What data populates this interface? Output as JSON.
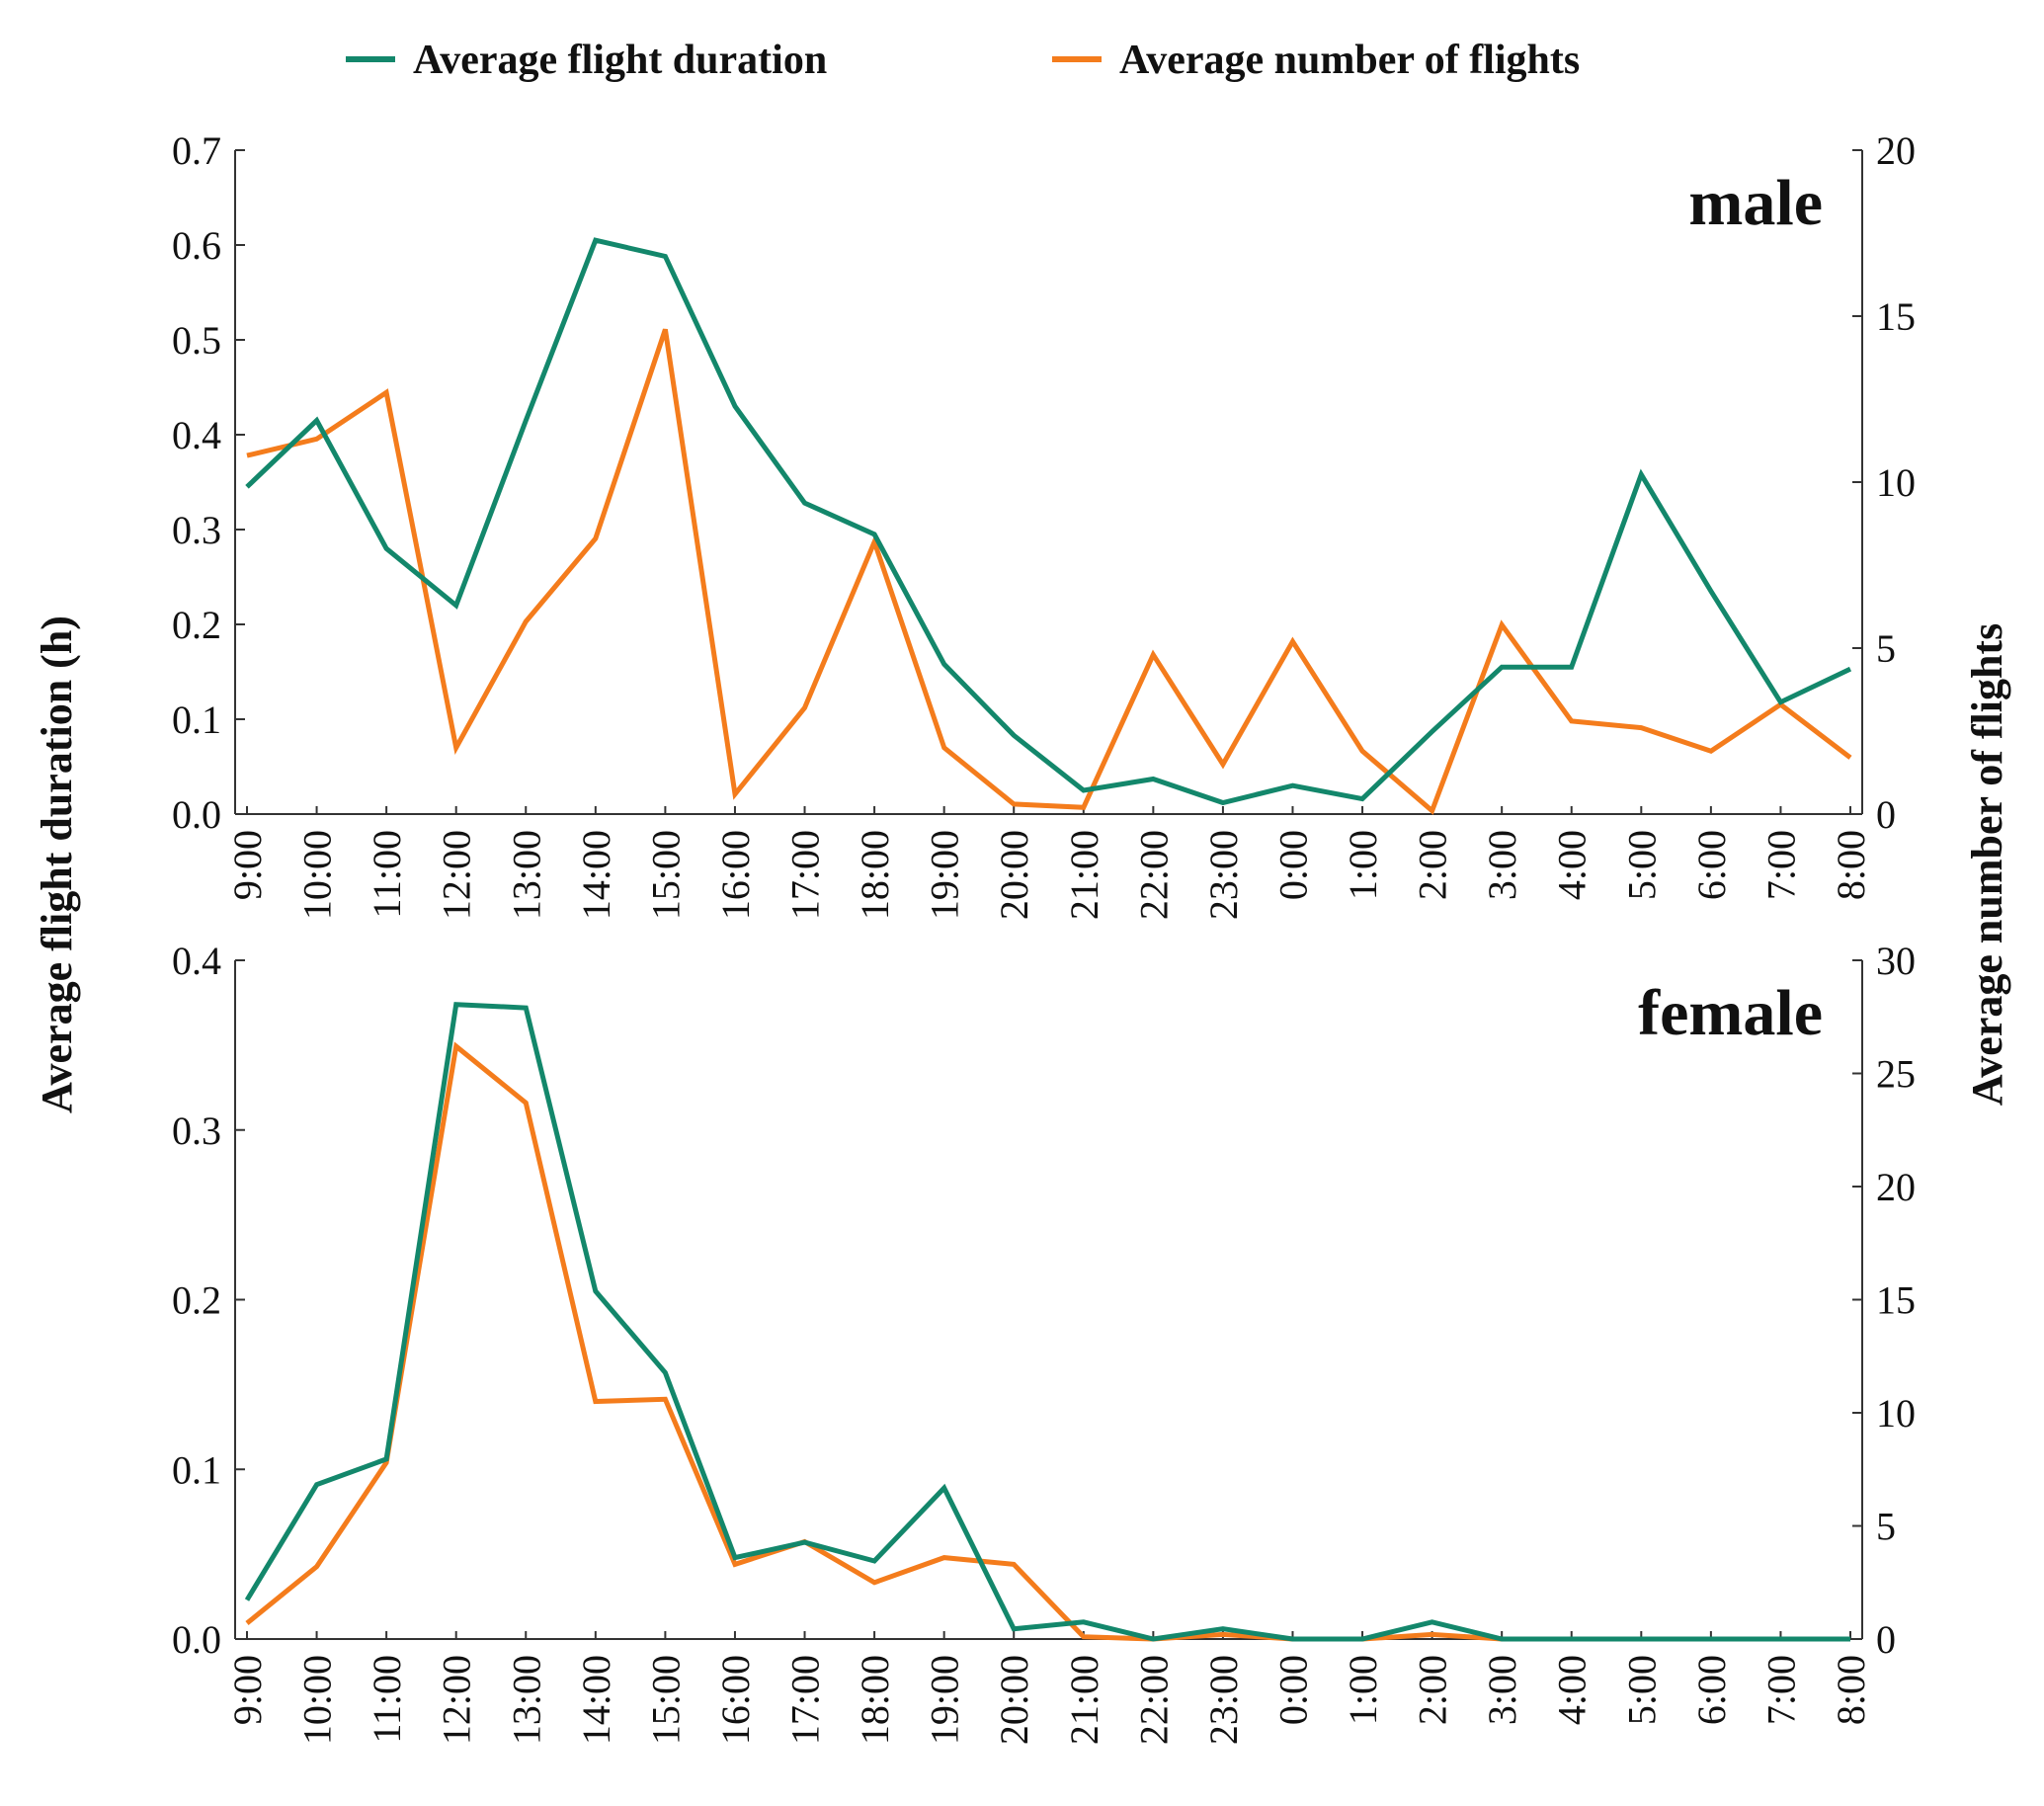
{
  "legend": {
    "duration_label": "Average flight duration",
    "number_label": "Average number of flights"
  },
  "axes": {
    "left_title": "Average flight duration (h)",
    "right_title": "Average number of flights"
  },
  "colors": {
    "duration": "#13876b",
    "number": "#f47c1c",
    "axis": "#333333"
  },
  "chart_data": [
    {
      "type": "line",
      "panel_label": "male",
      "categories": [
        "9:00",
        "10:00",
        "11:00",
        "12:00",
        "13:00",
        "14:00",
        "15:00",
        "16:00",
        "17:00",
        "18:00",
        "19:00",
        "20:00",
        "21:00",
        "22:00",
        "23:00",
        "0:00",
        "1:00",
        "2:00",
        "3:00",
        "4:00",
        "5:00",
        "6:00",
        "7:00",
        "8:00"
      ],
      "left_axis": {
        "ylim": [
          0,
          0.7
        ],
        "ticks": [
          "0.0",
          "0.1",
          "0.2",
          "0.3",
          "0.4",
          "0.5",
          "0.6",
          "0.7"
        ],
        "label": "Average flight duration (h)"
      },
      "right_axis": {
        "ylim": [
          0,
          20
        ],
        "ticks": [
          "0",
          "5",
          "10",
          "15",
          "20"
        ],
        "label": "Average number of flights"
      },
      "series": [
        {
          "name": "Average flight duration",
          "axis": "left",
          "values": [
            0.345,
            0.415,
            0.28,
            0.22,
            0.415,
            0.605,
            0.588,
            0.43,
            0.328,
            0.295,
            0.158,
            0.083,
            0.025,
            0.037,
            0.012,
            0.03,
            0.016,
            0.087,
            0.155,
            0.155,
            0.358,
            0.235,
            0.118,
            0.153
          ]
        },
        {
          "name": "Average number of flights",
          "axis": "right",
          "values": [
            10.8,
            11.3,
            12.7,
            2.0,
            5.8,
            8.3,
            14.6,
            0.6,
            3.2,
            8.2,
            2.0,
            0.3,
            0.2,
            4.8,
            1.5,
            5.2,
            1.9,
            0.1,
            5.7,
            2.8,
            2.6,
            1.9,
            3.3,
            1.7
          ]
        }
      ]
    },
    {
      "type": "line",
      "panel_label": "female",
      "categories": [
        "9:00",
        "10:00",
        "11:00",
        "12:00",
        "13:00",
        "14:00",
        "15:00",
        "16:00",
        "17:00",
        "18:00",
        "19:00",
        "20:00",
        "21:00",
        "22:00",
        "23:00",
        "0:00",
        "1:00",
        "2:00",
        "3:00",
        "4:00",
        "5:00",
        "6:00",
        "7:00",
        "8:00"
      ],
      "left_axis": {
        "ylim": [
          0,
          0.4
        ],
        "ticks": [
          "0.0",
          "0.1",
          "0.2",
          "0.3",
          "0.4"
        ],
        "label": "Average flight duration (h)"
      },
      "right_axis": {
        "ylim": [
          0,
          30
        ],
        "ticks": [
          "0",
          "5",
          "10",
          "15",
          "20",
          "25",
          "30"
        ],
        "label": "Average number of flights"
      },
      "series": [
        {
          "name": "Average flight duration",
          "axis": "left",
          "values": [
            0.023,
            0.091,
            0.106,
            0.374,
            0.372,
            0.205,
            0.157,
            0.048,
            0.057,
            0.046,
            0.089,
            0.006,
            0.01,
            0.0,
            0.006,
            0.0,
            0.0,
            0.01,
            0.0,
            0.0,
            0.0,
            0.0,
            0.0,
            0.0
          ]
        },
        {
          "name": "Average number of flights",
          "axis": "right",
          "values": [
            0.7,
            3.2,
            7.8,
            26.2,
            23.7,
            10.5,
            10.6,
            3.3,
            4.3,
            2.5,
            3.6,
            3.3,
            0.1,
            0.0,
            0.2,
            0.0,
            0.0,
            0.2,
            0.0,
            0.0,
            0.0,
            0.0,
            0.0,
            0.0
          ]
        }
      ]
    }
  ]
}
